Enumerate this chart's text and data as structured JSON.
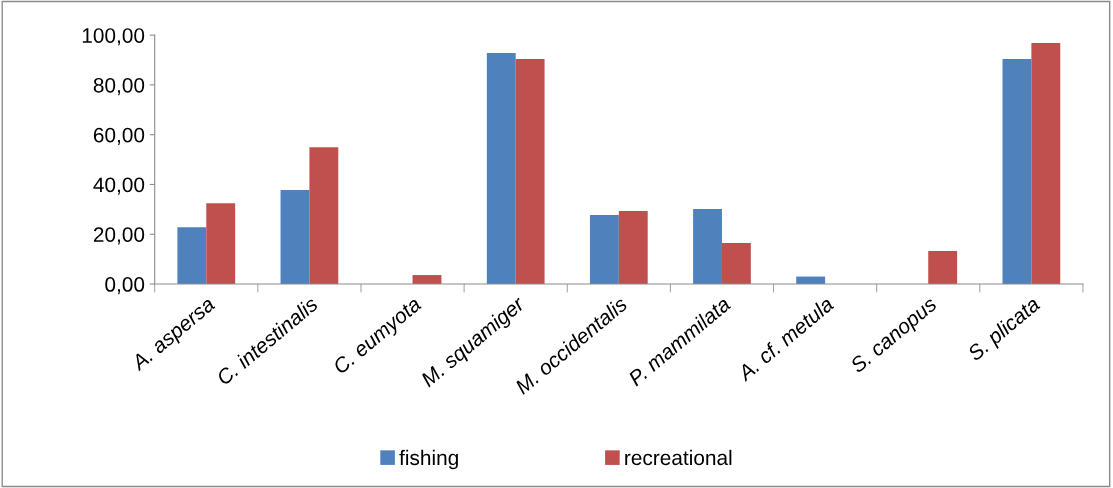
{
  "chart_data": {
    "type": "bar",
    "categories": [
      "A. aspersa",
      "C. intestinalis",
      "C. eumyota",
      "M. squamiger",
      "M. occidentalis",
      "P. mammilata",
      "A. cf. metula",
      "S. canopus",
      "S. plicata"
    ],
    "series": [
      {
        "name": "fishing",
        "color": "#4f81bd",
        "values": [
          22.8,
          37.8,
          0,
          92.8,
          27.7,
          30.1,
          3.0,
          0,
          90.4
        ]
      },
      {
        "name": "recreational",
        "color": "#c0504d",
        "values": [
          32.5,
          55.0,
          3.6,
          90.4,
          29.3,
          16.5,
          0,
          13.3,
          96.8
        ]
      }
    ],
    "ylim": [
      0,
      100
    ],
    "yticks": [
      {
        "value": 0,
        "label": "0,00"
      },
      {
        "value": 20,
        "label": "20,00"
      },
      {
        "value": 40,
        "label": "40,00"
      },
      {
        "value": 60,
        "label": "60,00"
      },
      {
        "value": 80,
        "label": "80,00"
      },
      {
        "value": 100,
        "label": "100,00"
      }
    ],
    "grid": false,
    "legend": "bottom"
  }
}
